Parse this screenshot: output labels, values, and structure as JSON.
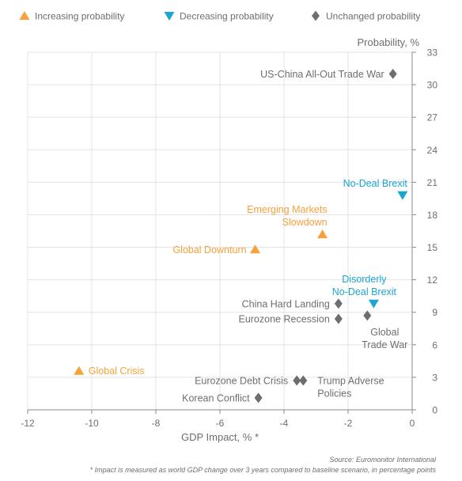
{
  "chart_data": {
    "type": "scatter",
    "title": "",
    "xlabel": "GDP Impact, % *",
    "ylabel": "Probability, %",
    "xlim": [
      -12,
      0
    ],
    "ylim": [
      0,
      33
    ],
    "x_ticks": [
      -12,
      -10,
      -8,
      -6,
      -4,
      -2,
      0
    ],
    "y_ticks": [
      0,
      3,
      6,
      9,
      12,
      15,
      18,
      21,
      24,
      27,
      30,
      33
    ],
    "grid": true,
    "legend_position": "top",
    "colors": {
      "increasing": "#f6a13a",
      "decreasing": "#1aa6d1",
      "unchanged": "#6d6e71",
      "grid": "#e3e3e3",
      "axis": "#8a8a8a",
      "tick_text": "#6d6e71"
    },
    "legend": [
      {
        "key": "increasing",
        "label": "Increasing probability",
        "marker": "triangle-up"
      },
      {
        "key": "decreasing",
        "label": "Decreasing probability",
        "marker": "triangle-down"
      },
      {
        "key": "unchanged",
        "label": "Unchanged probability",
        "marker": "diamond"
      }
    ],
    "points": [
      {
        "label": [
          "US-China All-Out Trade War"
        ],
        "x": -0.6,
        "y": 31,
        "category": "unchanged",
        "label_pos": "left"
      },
      {
        "label": [
          "No-Deal Brexit"
        ],
        "x": -0.3,
        "y": 19.8,
        "category": "decreasing",
        "label_pos": "above-left"
      },
      {
        "label": [
          "Emerging Markets",
          "Slowdown"
        ],
        "x": -2.8,
        "y": 16.2,
        "category": "increasing",
        "label_pos": "above-left"
      },
      {
        "label": [
          "Global Downturn"
        ],
        "x": -4.9,
        "y": 14.8,
        "category": "increasing",
        "label_pos": "left"
      },
      {
        "label": [
          "Disorderly",
          "No-Deal Brexit"
        ],
        "x": -1.2,
        "y": 9.8,
        "category": "decreasing",
        "label_pos": "above"
      },
      {
        "label": [
          "China Hard Landing"
        ],
        "x": -2.3,
        "y": 9.8,
        "category": "unchanged",
        "label_pos": "left"
      },
      {
        "label": [
          "Eurozone Recession"
        ],
        "x": -2.3,
        "y": 8.4,
        "category": "unchanged",
        "label_pos": "left"
      },
      {
        "label": [
          "Global",
          "Trade War"
        ],
        "x": -1.4,
        "y": 8.7,
        "category": "unchanged",
        "label_pos": "below"
      },
      {
        "label": [
          "Global Crisis"
        ],
        "x": -10.4,
        "y": 3.6,
        "category": "increasing",
        "label_pos": "right"
      },
      {
        "label": [
          "Eurozone Debt Crisis"
        ],
        "x": -3.6,
        "y": 2.7,
        "category": "unchanged",
        "label_pos": "left"
      },
      {
        "label": [
          "Trump Adverse",
          "Policies"
        ],
        "x": -3.4,
        "y": 2.7,
        "category": "unchanged",
        "label_pos": "below-right"
      },
      {
        "label": [
          "Korean Conflict"
        ],
        "x": -4.8,
        "y": 1.1,
        "category": "unchanged",
        "label_pos": "left"
      }
    ]
  },
  "footer": {
    "source": "Source: Euromonitor International",
    "note": "* Impact is measured as world GDP change over 3 years compared to baseline scenario, in percentage points"
  }
}
